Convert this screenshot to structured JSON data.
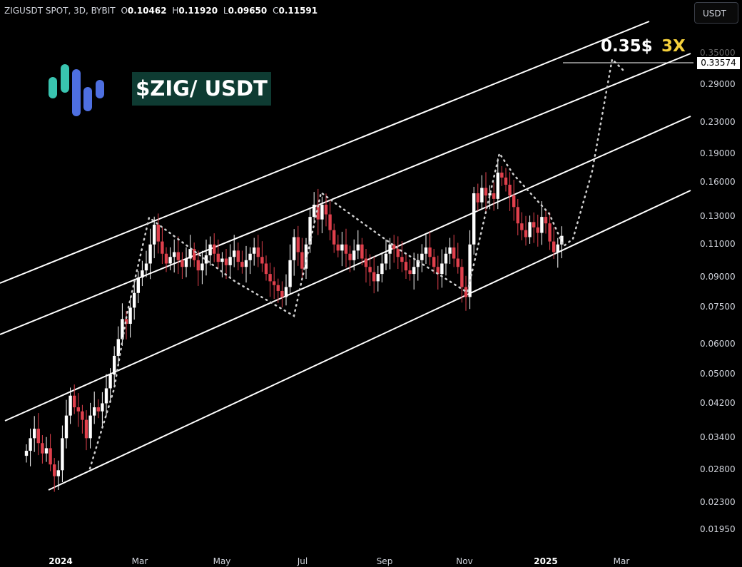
{
  "header": {
    "symbol": "ZIGUSDT SPOT, 3D, BYBIT",
    "open_label": "O",
    "open": "0.10462",
    "high_label": "H",
    "high": "0.11920",
    "low_label": "L",
    "low": "0.09650",
    "close_label": "C",
    "close": "0.11591"
  },
  "currency_button": "USDT",
  "ticker_label": "$ZIG/ USDT",
  "target_label": "0.35$",
  "multiplier_label": "3X",
  "price_tag": "0.33574",
  "colors": {
    "up": "#ffffff",
    "down": "#e0404c",
    "channel": "#ffffff",
    "logo_teal": "#39c4b0",
    "logo_blue": "#4e6fe0"
  },
  "chart_data": {
    "type": "candlestick",
    "scale": "log",
    "ylim": [
      0.0175,
      0.36
    ],
    "y_ticks": [
      "0.35000",
      "0.29000",
      "0.23000",
      "0.19000",
      "0.16000",
      "0.13000",
      "0.11000",
      "0.09000",
      "0.07500",
      "0.06000",
      "0.05000",
      "0.04200",
      "0.03400",
      "0.02800",
      "0.02300",
      "0.01950"
    ],
    "y_tick_values": [
      0.35,
      0.29,
      0.23,
      0.19,
      0.16,
      0.13,
      0.11,
      0.09,
      0.075,
      0.06,
      0.05,
      0.042,
      0.034,
      0.028,
      0.023,
      0.0195
    ],
    "x_ticks": [
      {
        "label": "2024",
        "date": "2024-01-01",
        "bold": true
      },
      {
        "label": "Mar",
        "date": "2024-03-01",
        "bold": false
      },
      {
        "label": "May",
        "date": "2024-05-01",
        "bold": false
      },
      {
        "label": "Jul",
        "date": "2024-07-01",
        "bold": false
      },
      {
        "label": "Sep",
        "date": "2024-09-01",
        "bold": false
      },
      {
        "label": "Nov",
        "date": "2024-11-01",
        "bold": false
      },
      {
        "label": "2025",
        "date": "2025-01-01",
        "bold": true
      },
      {
        "label": "Mar",
        "date": "2025-03-01",
        "bold": false
      }
    ],
    "xlim": [
      "2023-11-27",
      "2025-04-07"
    ],
    "candles_start": "2023-12-04",
    "candle_interval_days": 3,
    "closes": [
      0.0315,
      0.034,
      0.036,
      0.033,
      0.031,
      0.032,
      0.029,
      0.027,
      0.028,
      0.034,
      0.039,
      0.044,
      0.041,
      0.04,
      0.038,
      0.034,
      0.039,
      0.041,
      0.04,
      0.042,
      0.046,
      0.05,
      0.056,
      0.062,
      0.07,
      0.068,
      0.075,
      0.082,
      0.09,
      0.094,
      0.098,
      0.11,
      0.124,
      0.112,
      0.104,
      0.098,
      0.102,
      0.105,
      0.1,
      0.096,
      0.101,
      0.107,
      0.1,
      0.094,
      0.098,
      0.103,
      0.11,
      0.104,
      0.099,
      0.101,
      0.097,
      0.102,
      0.106,
      0.099,
      0.096,
      0.1,
      0.104,
      0.108,
      0.102,
      0.098,
      0.092,
      0.088,
      0.086,
      0.083,
      0.08,
      0.085,
      0.1,
      0.115,
      0.105,
      0.095,
      0.11,
      0.13,
      0.14,
      0.128,
      0.14,
      0.132,
      0.12,
      0.11,
      0.106,
      0.11,
      0.104,
      0.1,
      0.106,
      0.11,
      0.101,
      0.096,
      0.093,
      0.088,
      0.092,
      0.098,
      0.104,
      0.11,
      0.107,
      0.102,
      0.099,
      0.094,
      0.092,
      0.096,
      0.1,
      0.104,
      0.108,
      0.102,
      0.096,
      0.092,
      0.098,
      0.104,
      0.108,
      0.101,
      0.096,
      0.085,
      0.08,
      0.11,
      0.15,
      0.142,
      0.155,
      0.148,
      0.15,
      0.145,
      0.17,
      0.165,
      0.158,
      0.148,
      0.138,
      0.125,
      0.12,
      0.115,
      0.126,
      0.122,
      0.118,
      0.13,
      0.125,
      0.112,
      0.105,
      0.11,
      0.1159
    ],
    "annotations": [
      "0.35$",
      "3X",
      "$ZIG/ USDT"
    ]
  }
}
